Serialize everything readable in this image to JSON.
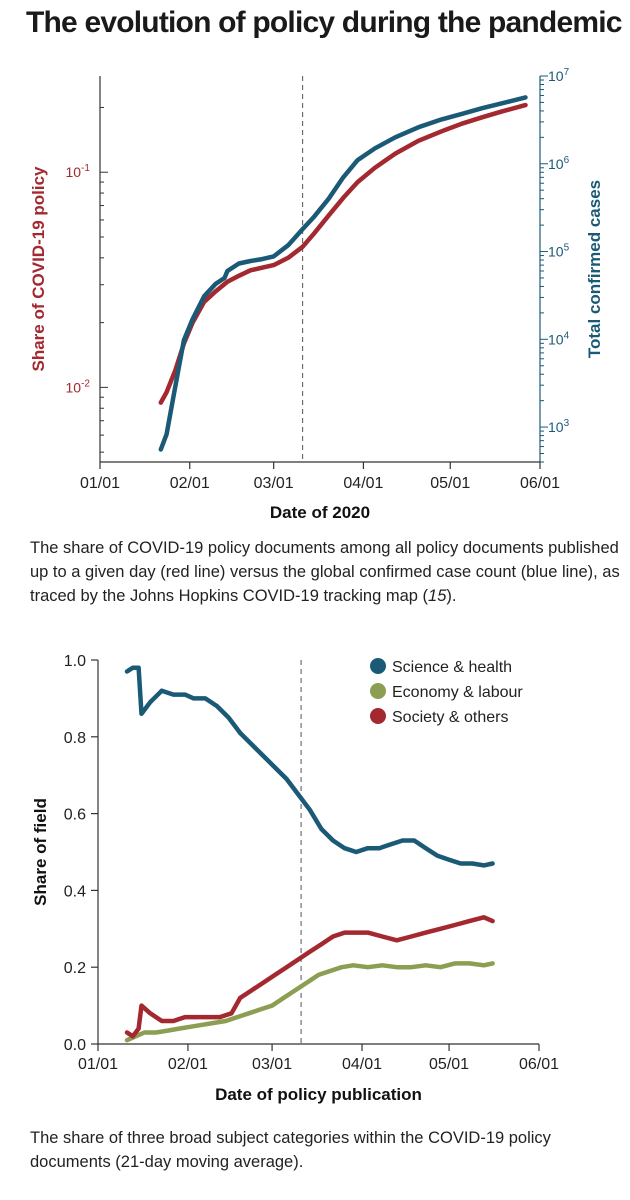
{
  "title": "The evolution of policy during the pandemic",
  "caption1": "The share of COVID-19 policy documents among all policy documents published up to a given day (red line) versus the global confirmed case count (blue line), as traced by the Johns Hopkins COVID-19 tracking map (15).",
  "caption2": "The share of three broad subject categories within the COVID-19 policy documents (21-day moving average).",
  "colors": {
    "red": "#a3282f",
    "blue": "#1b5a77",
    "green": "#8c9e52",
    "axis": "#333333"
  },
  "chart_data": [
    {
      "type": "line",
      "xlabel": "Date of 2020",
      "ylabel_left": "Share of COVID-19 policy",
      "ylabel_right": "Total confirmed cases",
      "x_ticks": [
        "01/01",
        "02/01",
        "03/01",
        "04/01",
        "05/01",
        "06/01"
      ],
      "x_range": [
        "2020-01-01",
        "2020-06-01"
      ],
      "y_left_scale": "log",
      "y_left_range": [
        0.0045,
        0.28
      ],
      "y_left_ticks": [
        {
          "value": 0.01,
          "base": "10",
          "exp": "-2"
        },
        {
          "value": 0.1,
          "base": "10",
          "exp": "-1"
        }
      ],
      "y_right_scale": "log",
      "y_right_range": [
        400,
        10000000
      ],
      "y_right_ticks": [
        {
          "value": 1000,
          "base": "10",
          "exp": "3"
        },
        {
          "value": 10000,
          "base": "10",
          "exp": "4"
        },
        {
          "value": 100000,
          "base": "10",
          "exp": "5"
        },
        {
          "value": 1000000,
          "base": "10",
          "exp": "6"
        },
        {
          "value": 10000000,
          "base": "10",
          "exp": "7"
        }
      ],
      "vline": "2020-03-11",
      "series": [
        {
          "axis": "left",
          "color": "red",
          "x": [
            "2020-01-22",
            "2020-01-24",
            "2020-01-27",
            "2020-01-30",
            "2020-02-02",
            "2020-02-06",
            "2020-02-10",
            "2020-02-14",
            "2020-02-18",
            "2020-02-22",
            "2020-02-26",
            "2020-03-01",
            "2020-03-06",
            "2020-03-11",
            "2020-03-15",
            "2020-03-20",
            "2020-03-25",
            "2020-03-30",
            "2020-04-05",
            "2020-04-12",
            "2020-04-20",
            "2020-04-28",
            "2020-05-05",
            "2020-05-12",
            "2020-05-19",
            "2020-05-27"
          ],
          "values": [
            0.0085,
            0.0095,
            0.012,
            0.016,
            0.02,
            0.025,
            0.028,
            0.031,
            0.033,
            0.035,
            0.036,
            0.037,
            0.04,
            0.045,
            0.052,
            0.063,
            0.076,
            0.09,
            0.105,
            0.122,
            0.14,
            0.155,
            0.168,
            0.18,
            0.192,
            0.205
          ]
        },
        {
          "axis": "right",
          "color": "blue",
          "x": [
            "2020-01-22",
            "2020-01-24",
            "2020-01-27",
            "2020-01-30",
            "2020-02-02",
            "2020-02-06",
            "2020-02-10",
            "2020-02-13",
            "2020-02-14",
            "2020-02-18",
            "2020-02-22",
            "2020-02-26",
            "2020-03-01",
            "2020-03-06",
            "2020-03-11",
            "2020-03-15",
            "2020-03-20",
            "2020-03-25",
            "2020-03-30",
            "2020-04-05",
            "2020-04-12",
            "2020-04-20",
            "2020-04-28",
            "2020-05-05",
            "2020-05-12",
            "2020-05-19",
            "2020-05-27"
          ],
          "values": [
            555,
            830,
            2900,
            9800,
            17000,
            31000,
            43000,
            50000,
            60000,
            73000,
            78000,
            82000,
            88000,
            118000,
            180000,
            250000,
            400000,
            700000,
            1100000,
            1500000,
            2000000,
            2600000,
            3200000,
            3700000,
            4300000,
            4900000,
            5700000
          ]
        }
      ]
    },
    {
      "type": "line",
      "xlabel": "Date of policy publication",
      "ylabel": "Share of field",
      "x_ticks": [
        "01/01",
        "02/01",
        "03/01",
        "04/01",
        "05/01",
        "06/01"
      ],
      "x_range": [
        "2020-01-01",
        "2020-06-01"
      ],
      "ylim": [
        0,
        1
      ],
      "y_ticks": [
        "0.0",
        "0.2",
        "0.4",
        "0.6",
        "0.8",
        "1.0"
      ],
      "vline": "2020-03-11",
      "legend_position": "top-right",
      "series": [
        {
          "name": "Science & health",
          "color": "blue",
          "x": [
            "2020-01-11",
            "2020-01-13",
            "2020-01-15",
            "2020-01-16",
            "2020-01-19",
            "2020-01-23",
            "2020-01-27",
            "2020-01-31",
            "2020-02-03",
            "2020-02-07",
            "2020-02-11",
            "2020-02-15",
            "2020-02-19",
            "2020-02-23",
            "2020-02-27",
            "2020-03-02",
            "2020-03-06",
            "2020-03-10",
            "2020-03-14",
            "2020-03-18",
            "2020-03-22",
            "2020-03-26",
            "2020-03-30",
            "2020-04-03",
            "2020-04-07",
            "2020-04-11",
            "2020-04-15",
            "2020-04-19",
            "2020-04-23",
            "2020-04-27",
            "2020-05-01",
            "2020-05-05",
            "2020-05-09",
            "2020-05-13",
            "2020-05-16"
          ],
          "values": [
            0.97,
            0.98,
            0.98,
            0.86,
            0.89,
            0.92,
            0.91,
            0.91,
            0.9,
            0.9,
            0.88,
            0.85,
            0.81,
            0.78,
            0.75,
            0.72,
            0.69,
            0.65,
            0.61,
            0.56,
            0.53,
            0.51,
            0.5,
            0.51,
            0.51,
            0.52,
            0.53,
            0.53,
            0.51,
            0.49,
            0.48,
            0.47,
            0.47,
            0.465,
            0.47
          ]
        },
        {
          "name": "Economy & labour",
          "color": "green",
          "x": [
            "2020-01-11",
            "2020-01-14",
            "2020-01-17",
            "2020-01-21",
            "2020-01-25",
            "2020-01-29",
            "2020-02-02",
            "2020-02-06",
            "2020-02-10",
            "2020-02-14",
            "2020-02-18",
            "2020-02-22",
            "2020-02-26",
            "2020-03-01",
            "2020-03-05",
            "2020-03-09",
            "2020-03-13",
            "2020-03-17",
            "2020-03-21",
            "2020-03-25",
            "2020-03-29",
            "2020-04-03",
            "2020-04-08",
            "2020-04-13",
            "2020-04-18",
            "2020-04-23",
            "2020-04-28",
            "2020-05-03",
            "2020-05-08",
            "2020-05-13",
            "2020-05-16"
          ],
          "values": [
            0.01,
            0.02,
            0.03,
            0.03,
            0.035,
            0.04,
            0.045,
            0.05,
            0.055,
            0.06,
            0.07,
            0.08,
            0.09,
            0.1,
            0.12,
            0.14,
            0.16,
            0.18,
            0.19,
            0.2,
            0.205,
            0.2,
            0.205,
            0.2,
            0.2,
            0.205,
            0.2,
            0.21,
            0.21,
            0.205,
            0.21
          ]
        },
        {
          "name": "Society & others",
          "color": "red",
          "x": [
            "2020-01-11",
            "2020-01-13",
            "2020-01-15",
            "2020-01-16",
            "2020-01-19",
            "2020-01-23",
            "2020-01-27",
            "2020-01-31",
            "2020-02-04",
            "2020-02-08",
            "2020-02-12",
            "2020-02-16",
            "2020-02-19",
            "2020-02-23",
            "2020-02-27",
            "2020-03-02",
            "2020-03-06",
            "2020-03-10",
            "2020-03-14",
            "2020-03-18",
            "2020-03-22",
            "2020-03-26",
            "2020-03-30",
            "2020-04-03",
            "2020-04-08",
            "2020-04-13",
            "2020-04-18",
            "2020-04-23",
            "2020-04-28",
            "2020-05-03",
            "2020-05-08",
            "2020-05-13",
            "2020-05-16"
          ],
          "values": [
            0.03,
            0.02,
            0.04,
            0.1,
            0.08,
            0.06,
            0.06,
            0.07,
            0.07,
            0.07,
            0.07,
            0.08,
            0.12,
            0.14,
            0.16,
            0.18,
            0.2,
            0.22,
            0.24,
            0.26,
            0.28,
            0.29,
            0.29,
            0.29,
            0.28,
            0.27,
            0.28,
            0.29,
            0.3,
            0.31,
            0.32,
            0.33,
            0.32
          ]
        }
      ]
    }
  ]
}
